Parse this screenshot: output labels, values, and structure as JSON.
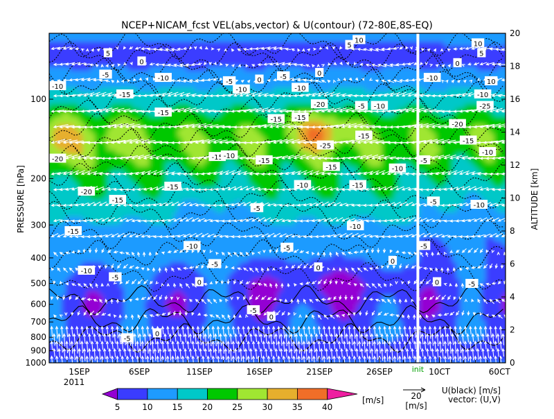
{
  "chart_data": {
    "type": "heatmap",
    "title": "NCEP+NICAM_fcst VEL(abs,vector) & U(contour)   (72-80E,8S-EQ)",
    "ylabel_left": "PRESSURE [hPa]",
    "ylabel_right": "ALTITUDE [km]",
    "pressure_ticks": [
      1000,
      900,
      800,
      700,
      600,
      500,
      400,
      300,
      200,
      100
    ],
    "altitude_ticks": [
      0,
      2,
      4,
      6,
      8,
      10,
      12,
      14,
      16,
      18,
      20
    ],
    "altitude_range": [
      0,
      20
    ],
    "x_range_days": [
      -2.5,
      35.5
    ],
    "x_ticks": [
      {
        "label": "1SEP",
        "day": 0
      },
      {
        "label": "6SEP",
        "day": 5
      },
      {
        "label": "11SEP",
        "day": 10
      },
      {
        "label": "16SEP",
        "day": 15
      },
      {
        "label": "21SEP",
        "day": 20
      },
      {
        "label": "26SEP",
        "day": 25
      },
      {
        "label": "10CT",
        "day": 30
      },
      {
        "label": "60CT",
        "day": 35
      }
    ],
    "year_label": "2011",
    "init_day": 28.2,
    "init_label": "init",
    "colorbar": {
      "levels": [
        5,
        10,
        15,
        20,
        25,
        30,
        35,
        40
      ],
      "colors": [
        "#9400d3",
        "#3a3cff",
        "#1e9bff",
        "#00c8c8",
        "#00c800",
        "#a0e632",
        "#e6af2d",
        "#f06e28",
        "#ee1ea0"
      ],
      "units": "[m/s]"
    },
    "vector_legend": {
      "value": "20",
      "units": "[m/s]"
    },
    "legend_text": {
      "line1": "U(black) [m/s]",
      "line2": "vector: (U,V)"
    },
    "contour_labels": [
      {
        "text": "5",
        "day": 2.4,
        "alt": 18.8
      },
      {
        "text": "0",
        "day": 5.2,
        "alt": 18.3
      },
      {
        "text": "5",
        "day": 22.5,
        "alt": 19.3
      },
      {
        "text": "10",
        "day": 23.3,
        "alt": 19.6
      },
      {
        "text": "0",
        "day": 15.0,
        "alt": 17.2
      },
      {
        "text": "0",
        "day": 20.0,
        "alt": 17.6
      },
      {
        "text": "-5",
        "day": 2.2,
        "alt": 17.5
      },
      {
        "text": "-10",
        "day": -1.8,
        "alt": 16.8
      },
      {
        "text": "-10",
        "day": 7.0,
        "alt": 17.3
      },
      {
        "text": "-5",
        "day": 12.5,
        "alt": 17.1
      },
      {
        "text": "-5",
        "day": 17.0,
        "alt": 17.4
      },
      {
        "text": "-10",
        "day": 13.5,
        "alt": 16.6
      },
      {
        "text": "-10",
        "day": 18.4,
        "alt": 16.7
      },
      {
        "text": "-15",
        "day": 3.8,
        "alt": 16.3
      },
      {
        "text": "-20",
        "day": 20.0,
        "alt": 15.7
      },
      {
        "text": "-5",
        "day": 23.5,
        "alt": 15.6
      },
      {
        "text": "-10",
        "day": 25.0,
        "alt": 15.6
      },
      {
        "text": "-15",
        "day": 7.0,
        "alt": 15.2
      },
      {
        "text": "-15",
        "day": 16.4,
        "alt": 14.8
      },
      {
        "text": "-15",
        "day": 18.4,
        "alt": 14.9
      },
      {
        "text": "-25",
        "day": 20.5,
        "alt": 13.2
      },
      {
        "text": "-15",
        "day": 23.7,
        "alt": 13.8
      },
      {
        "text": "-15",
        "day": 11.5,
        "alt": 12.5
      },
      {
        "text": "-10",
        "day": 12.5,
        "alt": 12.6
      },
      {
        "text": "-20",
        "day": -1.8,
        "alt": 12.4
      },
      {
        "text": "-15",
        "day": 15.4,
        "alt": 12.3
      },
      {
        "text": "-15",
        "day": 21.0,
        "alt": 11.9
      },
      {
        "text": "-10",
        "day": 26.5,
        "alt": 11.8
      },
      {
        "text": "-15",
        "day": 7.8,
        "alt": 10.7
      },
      {
        "text": "-10",
        "day": 18.6,
        "alt": 10.8
      },
      {
        "text": "-15",
        "day": 23.2,
        "alt": 10.8
      },
      {
        "text": "-20",
        "day": 0.6,
        "alt": 10.4
      },
      {
        "text": "-15",
        "day": 3.2,
        "alt": 9.9
      },
      {
        "text": "-5",
        "day": 14.8,
        "alt": 9.4
      },
      {
        "text": "-10",
        "day": 23.0,
        "alt": 8.3
      },
      {
        "text": "-15",
        "day": -0.5,
        "alt": 8.0
      },
      {
        "text": "-5",
        "day": 17.3,
        "alt": 7.0
      },
      {
        "text": "-10",
        "day": 9.4,
        "alt": 7.1
      },
      {
        "text": "-5",
        "day": 11.3,
        "alt": 6.0
      },
      {
        "text": "-10",
        "day": 0.6,
        "alt": 5.6
      },
      {
        "text": "-5",
        "day": 3.0,
        "alt": 5.2
      },
      {
        "text": "0",
        "day": 10.0,
        "alt": 4.9
      },
      {
        "text": "0",
        "day": 19.9,
        "alt": 5.8
      },
      {
        "text": "0",
        "day": 26.1,
        "alt": 6.2
      },
      {
        "text": "-5",
        "day": 14.5,
        "alt": 3.2
      },
      {
        "text": "0",
        "day": 16.0,
        "alt": 2.8
      },
      {
        "text": "0",
        "day": 6.5,
        "alt": 1.8
      },
      {
        "text": "-5",
        "day": 4.0,
        "alt": 1.5
      },
      {
        "text": "-5",
        "day": 28.7,
        "alt": 7.1
      },
      {
        "text": "-5",
        "day": 29.5,
        "alt": 9.8
      },
      {
        "text": "-10",
        "day": 33.3,
        "alt": 9.6
      },
      {
        "text": "0",
        "day": 29.8,
        "alt": 4.9
      },
      {
        "text": "-5",
        "day": 32.7,
        "alt": 4.8
      },
      {
        "text": "-5",
        "day": 28.7,
        "alt": 12.3
      },
      {
        "text": "-10",
        "day": 29.4,
        "alt": 17.3
      },
      {
        "text": "-10",
        "day": 33.6,
        "alt": 16.3
      },
      {
        "text": "-25",
        "day": 33.8,
        "alt": 15.6
      },
      {
        "text": "-20",
        "day": 31.5,
        "alt": 14.5
      },
      {
        "text": "-15",
        "day": 32.4,
        "alt": 13.5
      },
      {
        "text": "-10",
        "day": 34.0,
        "alt": 12.8
      },
      {
        "text": "0",
        "day": 31.5,
        "alt": 18.2
      },
      {
        "text": "5",
        "day": 33.5,
        "alt": 18.8
      },
      {
        "text": "10",
        "day": 33.2,
        "alt": 19.4
      },
      {
        "text": "10",
        "day": 34.3,
        "alt": 17.1
      }
    ]
  }
}
